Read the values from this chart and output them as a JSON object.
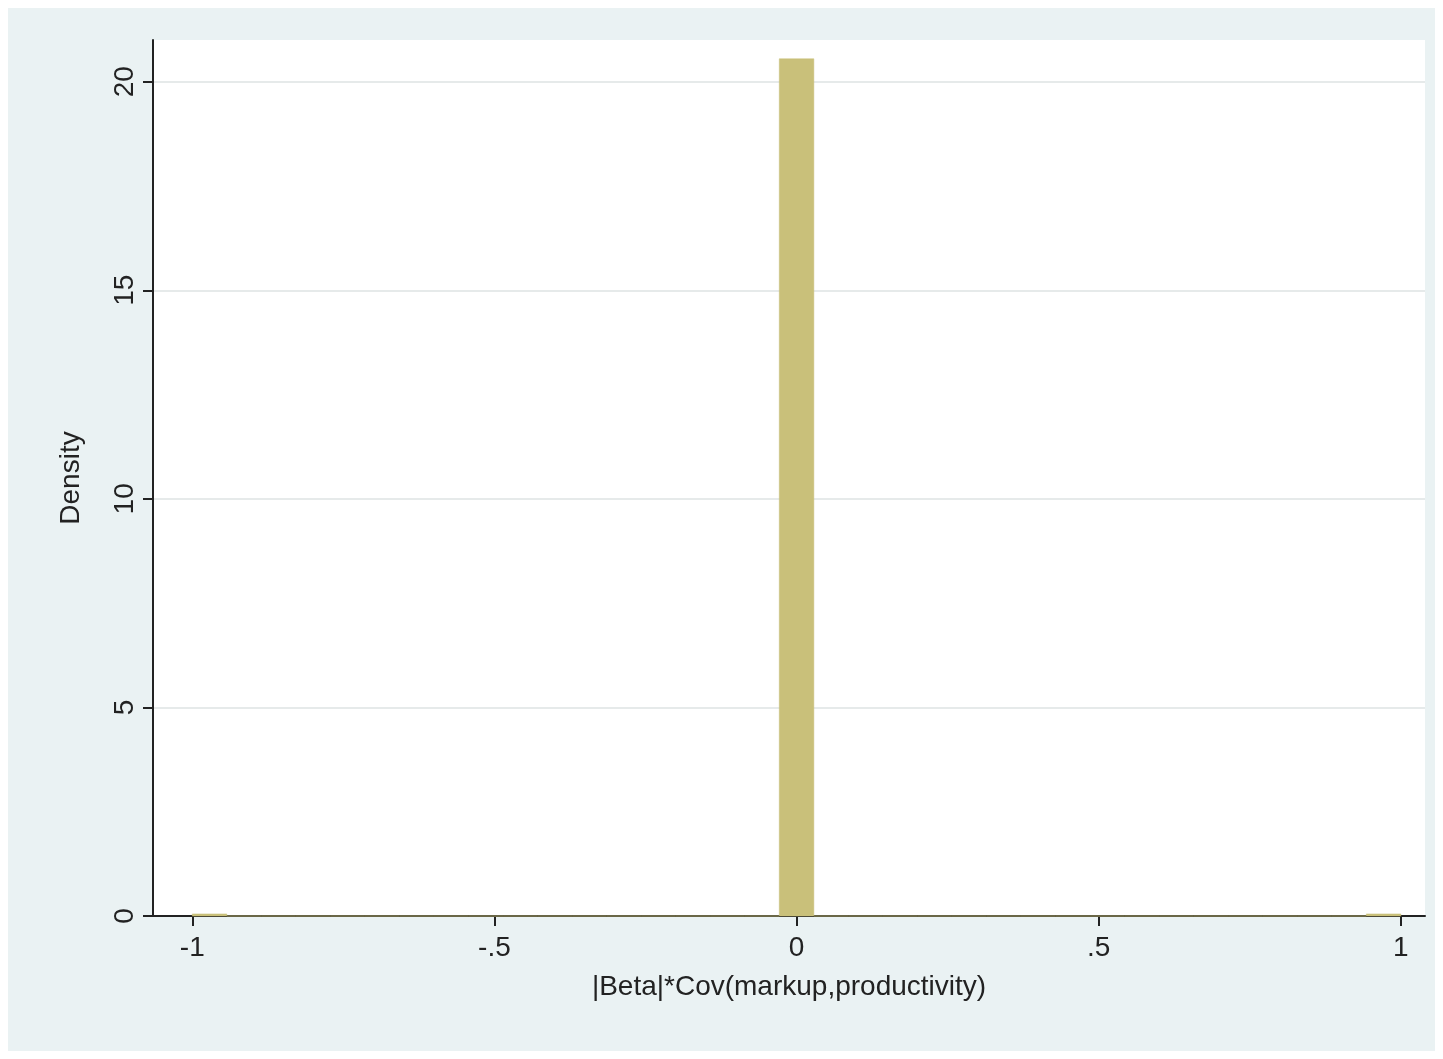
{
  "chart_data": {
    "type": "histogram",
    "xlabel": "|Beta|*Cov(markup,productivity)",
    "ylabel": "Density",
    "bins": [
      -1,
      -0.9429,
      -0.8857,
      -0.8286,
      -0.7714,
      -0.7143,
      -0.6571,
      -0.6,
      -0.5429,
      -0.4857,
      -0.4286,
      -0.3714,
      -0.3143,
      -0.2571,
      -0.2,
      -0.1429,
      -0.0857,
      -0.0286,
      0.0286,
      0.0857,
      0.1429,
      0.2,
      0.2571,
      0.3143,
      0.3714,
      0.4286,
      0.4857,
      0.5429,
      0.6,
      0.6571,
      0.7143,
      0.7714,
      0.8286,
      0.8857,
      0.9429,
      1
    ],
    "values": [
      0.05,
      0,
      0,
      0,
      0,
      0,
      0,
      0,
      0,
      0,
      0,
      0,
      0,
      0,
      0,
      0,
      0,
      20.55,
      0,
      0,
      0,
      0,
      0,
      0,
      0,
      0,
      0,
      0,
      0,
      0,
      0,
      0,
      0,
      0,
      0.05
    ],
    "color": "#c9c07a",
    "xlim": [
      -1.065,
      1.04
    ],
    "ylim": [
      0,
      21
    ],
    "xticks": [
      -1,
      {
        "value": -0.5,
        "label": "-.5"
      },
      0,
      {
        "value": 0.5,
        "label": ".5"
      },
      1
    ],
    "yticks": [
      0,
      5,
      10,
      15,
      20
    ],
    "grid": "y"
  }
}
